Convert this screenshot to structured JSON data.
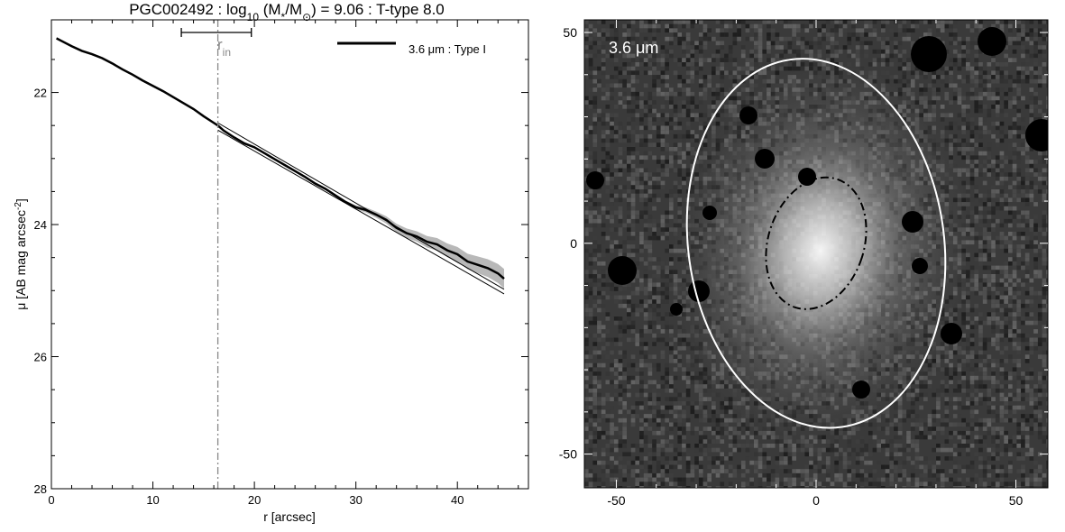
{
  "title": {
    "prefix": "PGC002492 : log",
    "sub1": "10",
    "mid": " (M",
    "sub2": "*",
    "mid2": "/M",
    "sub3": "⊙",
    "suffix": ") = 9.06 : T-type 8.0"
  },
  "chart_data": [
    {
      "type": "line",
      "xlabel": "r [arcsec]",
      "ylabel": "μ [AB mag arcsec",
      "ylabel_sup": "-2",
      "ylabel_end": "]",
      "xlim": [
        0,
        47
      ],
      "ylim": [
        28,
        20.9
      ],
      "y_inverted": true,
      "xticks": [
        0,
        10,
        20,
        30,
        40
      ],
      "yticks": [
        22,
        24,
        26,
        28
      ],
      "legend": {
        "label": "3.6 μm : Type I",
        "position": "top-right"
      },
      "r_in": {
        "label": "r",
        "label_sub": "in",
        "value": 16.4,
        "range": [
          12.8,
          19.7
        ]
      },
      "series": [
        {
          "name": "3.6 μm : Type I",
          "x": [
            0.5,
            1,
            2,
            3,
            4,
            5,
            6,
            7,
            8,
            9,
            10,
            11,
            12,
            13,
            14,
            15,
            16,
            16.4,
            17,
            18,
            19,
            20,
            21,
            22,
            23,
            24,
            25,
            26,
            27,
            28,
            29,
            30,
            31,
            32,
            33,
            34,
            35,
            36,
            37,
            38,
            39,
            40,
            41,
            42,
            43,
            44,
            44.6
          ],
          "y": [
            21.18,
            21.22,
            21.3,
            21.37,
            21.42,
            21.48,
            21.56,
            21.65,
            21.73,
            21.82,
            21.9,
            21.98,
            22.07,
            22.16,
            22.25,
            22.36,
            22.46,
            22.5,
            22.58,
            22.68,
            22.77,
            22.83,
            22.92,
            23.01,
            23.1,
            23.19,
            23.28,
            23.38,
            23.46,
            23.56,
            23.66,
            23.74,
            23.78,
            23.85,
            23.93,
            24.05,
            24.13,
            24.18,
            24.26,
            24.3,
            24.39,
            24.45,
            24.56,
            24.61,
            24.66,
            24.74,
            24.82
          ]
        }
      ],
      "fit_lines": [
        {
          "x": [
            16.4,
            44.6
          ],
          "y": [
            22.46,
            24.98
          ]
        },
        {
          "x": [
            16.4,
            44.6
          ],
          "y": [
            22.57,
            25.05
          ]
        }
      ]
    },
    {
      "type": "heatmap",
      "label": "3.6 μm",
      "xlim": [
        -58,
        58
      ],
      "ylim": [
        -58,
        53
      ],
      "xticks": [
        -50,
        0,
        50
      ],
      "yticks": [
        -50,
        0,
        50
      ],
      "ellipses": [
        {
          "style": "solid",
          "color": "#ffffff",
          "cx": 0,
          "cy": 0,
          "rx": 32,
          "ry": 44,
          "angle": -8
        },
        {
          "style": "dash-dot",
          "color": "#000000",
          "cx": 0,
          "cy": 0,
          "rx": 12,
          "ry": 16,
          "angle": 18
        }
      ]
    }
  ]
}
